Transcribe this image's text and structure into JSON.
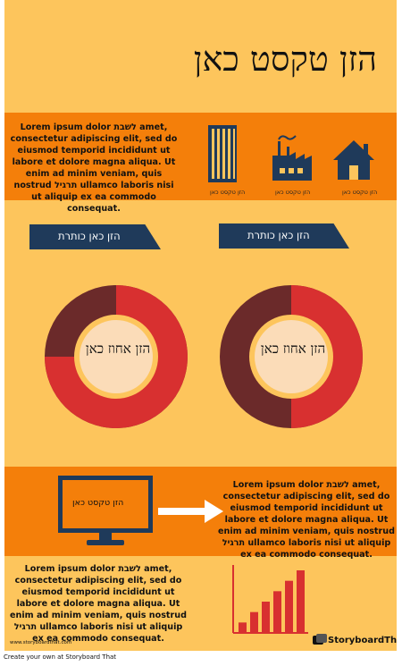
{
  "title": "הזן טקסט כאן",
  "top_section": {
    "paragraph": "Lorem ipsum dolor לשבת amet, consectetur adipiscing elit, sed do eiusmod temporid incididunt ut labore et dolore magna aliqua. Ut enim ad minim veniam, quis nostrud תרגיל ullamco laboris nisi ut aliquip ex ea commodo consequat.",
    "icons": [
      {
        "icon": "building-icon",
        "label": "הזן טקסט כאן"
      },
      {
        "icon": "factory-icon",
        "label": "הזן טקסט כאן"
      },
      {
        "icon": "house-icon",
        "label": "הזן טקסט כאן"
      }
    ]
  },
  "donuts": [
    {
      "heading": "הזן כאן כותרת",
      "center_text": "הזן אחוז כאן",
      "percent": 75
    },
    {
      "heading": "הזן כאן כותרת",
      "center_text": "הזן אחוז כאן",
      "percent": 50
    }
  ],
  "middle_section": {
    "monitor_text": "הזן טקסט כאן",
    "paragraph": "Lorem ipsum dolor לשבת amet, consectetur adipiscing elit, sed do eiusmod temporid incididunt ut labore et dolore magna aliqua. Ut enim ad minim veniam, quis nostrud תרגיל ullamco laboris nisi ut aliquip ex ea commodo consequat."
  },
  "bottom_section": {
    "paragraph": "Lorem ipsum dolor לשבת amet, consectetur adipiscing elit, sed do eiusmod temporid incididunt ut labore et dolore magna aliqua. Ut enim ad minim veniam, quis nostrud תרגיל ullamco laboris nisi ut aliquip ex ea commodo consequat.",
    "bar_values": [
      1,
      2,
      3,
      4,
      5,
      6
    ]
  },
  "branding": {
    "url": "www.storyboardthat.com",
    "logo_text": "StoryboardThat",
    "footer": "Create your own at Storyboard That"
  },
  "colors": {
    "background": "#fdc55c",
    "band": "#f47f0a",
    "navy": "#1f3a5a",
    "red": "#d83030",
    "dark_red": "#6b2a2a",
    "cream": "#fbdcb8"
  }
}
